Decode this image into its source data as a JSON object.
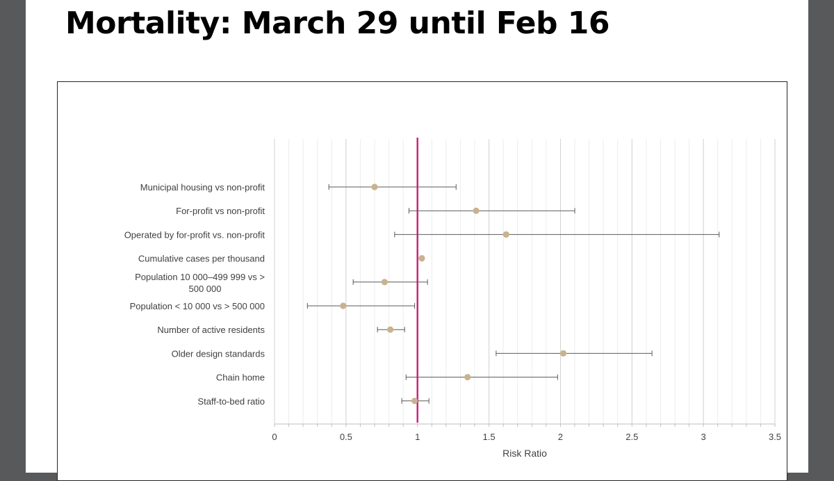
{
  "title": "Mortality: March 29 until Feb 16",
  "chart_data": {
    "type": "forest",
    "xlabel": "Risk Ratio",
    "xlim": [
      0,
      3.5
    ],
    "major_ticks": [
      0,
      0.5,
      1,
      1.5,
      2,
      2.5,
      3,
      3.5
    ],
    "minor_step": 0.1,
    "reference_line": 1,
    "reference_color": "#c8267a",
    "marker_color": "#c9b28f",
    "grid": true,
    "rows": [
      {
        "label": [
          "Municipal housing vs non-profit"
        ],
        "estimate": 0.7,
        "lower": 0.38,
        "upper": 1.27
      },
      {
        "label": [
          "For-profit vs non-profit"
        ],
        "estimate": 1.41,
        "lower": 0.94,
        "upper": 2.1
      },
      {
        "label": [
          "Operated by for-profit vs. non-profit"
        ],
        "estimate": 1.62,
        "lower": 0.84,
        "upper": 3.11
      },
      {
        "label": [
          "Cumulative cases per thousand"
        ],
        "estimate": 1.03,
        "lower": 1.02,
        "upper": 1.04
      },
      {
        "label": [
          "Population 10 000–499 999 vs >",
          "500 000"
        ],
        "estimate": 0.77,
        "lower": 0.55,
        "upper": 1.07
      },
      {
        "label": [
          "Population < 10 000 vs > 500 000"
        ],
        "estimate": 0.48,
        "lower": 0.23,
        "upper": 0.98
      },
      {
        "label": [
          "Number of active residents"
        ],
        "estimate": 0.81,
        "lower": 0.72,
        "upper": 0.91
      },
      {
        "label": [
          "Older design standards"
        ],
        "estimate": 2.02,
        "lower": 1.55,
        "upper": 2.64
      },
      {
        "label": [
          "Chain home"
        ],
        "estimate": 1.35,
        "lower": 0.92,
        "upper": 1.98
      },
      {
        "label": [
          "Staff-to-bed ratio"
        ],
        "estimate": 0.98,
        "lower": 0.89,
        "upper": 1.08
      }
    ]
  }
}
